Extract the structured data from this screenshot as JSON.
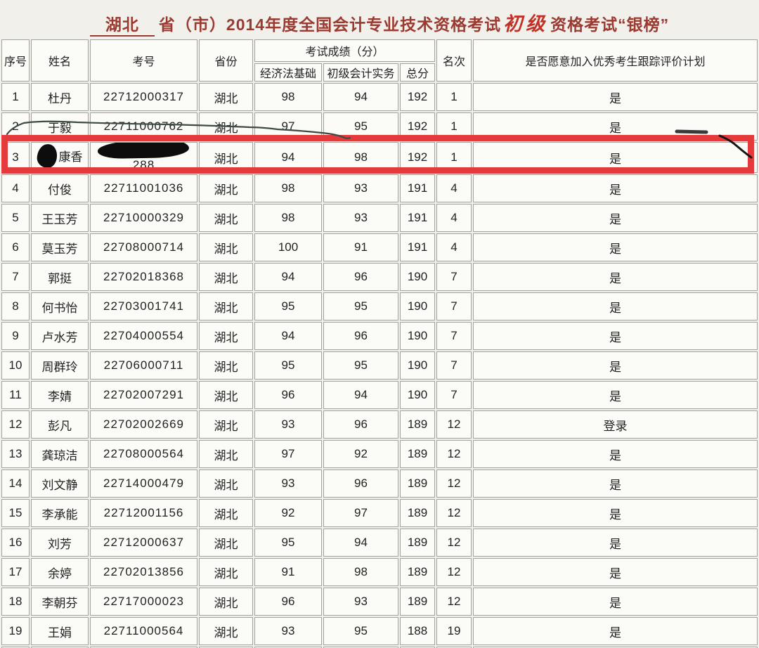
{
  "title": {
    "blank": "湖北",
    "part1": "省（市）2014年度全国会计专业技术资格考试",
    "grade": "初级",
    "part2": "资格考试“银榜”"
  },
  "colors": {
    "title_text": "#9b3a31",
    "grade_red": "#c23127",
    "highlight_box": "#e53a3c",
    "redaction": "#0d0d0d",
    "page_bg": "#f1f0eb",
    "cell_bg": "#fbfbf8",
    "grid_line": "#a3a39d"
  },
  "table": {
    "headers": {
      "no": "序号",
      "name": "姓名",
      "exam_no": "考号",
      "province": "省份",
      "score_group": "考试成绩（分）",
      "score1": "经济法基础",
      "score2": "初级会计实务",
      "total": "总分",
      "rank": "名次",
      "join": "是否愿意加入优秀考生跟踪评价计划"
    },
    "rows": [
      {
        "no": "1",
        "name": "杜丹",
        "exam_no": "22712000317",
        "province": "湖北",
        "score1": "98",
        "score2": "94",
        "total": "192",
        "rank": "1",
        "join": "是"
      },
      {
        "no": "2",
        "name": "于毅",
        "exam_no": "22711000762",
        "province": "湖北",
        "score1": "97",
        "score2": "95",
        "total": "192",
        "rank": "1",
        "join": "是"
      },
      {
        "no": "3",
        "name": "康香",
        "name_redacted": true,
        "exam_no": "288",
        "exam_redacted": true,
        "province": "湖北",
        "score1": "94",
        "score2": "98",
        "total": "192",
        "rank": "1",
        "join": "是",
        "highlighted": true
      },
      {
        "no": "4",
        "name": "付俊",
        "exam_no": "22711001036",
        "province": "湖北",
        "score1": "98",
        "score2": "93",
        "total": "191",
        "rank": "4",
        "join": "是"
      },
      {
        "no": "5",
        "name": "王玉芳",
        "exam_no": "22710000329",
        "province": "湖北",
        "score1": "98",
        "score2": "93",
        "total": "191",
        "rank": "4",
        "join": "是"
      },
      {
        "no": "6",
        "name": "莫玉芳",
        "exam_no": "22708000714",
        "province": "湖北",
        "score1": "100",
        "score2": "91",
        "total": "191",
        "rank": "4",
        "join": "是"
      },
      {
        "no": "7",
        "name": "郭挺",
        "exam_no": "22702018368",
        "province": "湖北",
        "score1": "94",
        "score2": "96",
        "total": "190",
        "rank": "7",
        "join": "是"
      },
      {
        "no": "8",
        "name": "何书怡",
        "exam_no": "22703001741",
        "province": "湖北",
        "score1": "95",
        "score2": "95",
        "total": "190",
        "rank": "7",
        "join": "是"
      },
      {
        "no": "9",
        "name": "卢水芳",
        "exam_no": "22704000554",
        "province": "湖北",
        "score1": "94",
        "score2": "96",
        "total": "190",
        "rank": "7",
        "join": "是"
      },
      {
        "no": "10",
        "name": "周群玲",
        "exam_no": "22706000711",
        "province": "湖北",
        "score1": "95",
        "score2": "95",
        "total": "190",
        "rank": "7",
        "join": "是"
      },
      {
        "no": "11",
        "name": "李婧",
        "exam_no": "22702007291",
        "province": "湖北",
        "score1": "96",
        "score2": "94",
        "total": "190",
        "rank": "7",
        "join": "是"
      },
      {
        "no": "12",
        "name": "彭凡",
        "exam_no": "22702002669",
        "province": "湖北",
        "score1": "93",
        "score2": "96",
        "total": "189",
        "rank": "12",
        "join": "登录"
      },
      {
        "no": "13",
        "name": "龚琼洁",
        "exam_no": "22708000564",
        "province": "湖北",
        "score1": "97",
        "score2": "92",
        "total": "189",
        "rank": "12",
        "join": "是"
      },
      {
        "no": "14",
        "name": "刘文静",
        "exam_no": "22714000479",
        "province": "湖北",
        "score1": "93",
        "score2": "96",
        "total": "189",
        "rank": "12",
        "join": "是"
      },
      {
        "no": "15",
        "name": "李承能",
        "exam_no": "22712001156",
        "province": "湖北",
        "score1": "92",
        "score2": "97",
        "total": "189",
        "rank": "12",
        "join": "是"
      },
      {
        "no": "16",
        "name": "刘芳",
        "exam_no": "22712000637",
        "province": "湖北",
        "score1": "95",
        "score2": "94",
        "total": "189",
        "rank": "12",
        "join": "是"
      },
      {
        "no": "17",
        "name": "余婷",
        "exam_no": "22702013856",
        "province": "湖北",
        "score1": "91",
        "score2": "98",
        "total": "189",
        "rank": "12",
        "join": "是"
      },
      {
        "no": "18",
        "name": "李朝芬",
        "exam_no": "22717000023",
        "province": "湖北",
        "score1": "96",
        "score2": "93",
        "total": "189",
        "rank": "12",
        "join": "是"
      },
      {
        "no": "19",
        "name": "王娟",
        "exam_no": "22711000564",
        "province": "湖北",
        "score1": "93",
        "score2": "95",
        "total": "188",
        "rank": "19",
        "join": "是"
      }
    ]
  },
  "annotations": {
    "highlighted_row_no": "3",
    "marks": [
      "red-rectangle-around-row-3",
      "black-redaction-over-name",
      "black-redaction-over-exam-no",
      "pen-squiggle-left",
      "pen-squiggle-right",
      "pen-dash"
    ]
  }
}
